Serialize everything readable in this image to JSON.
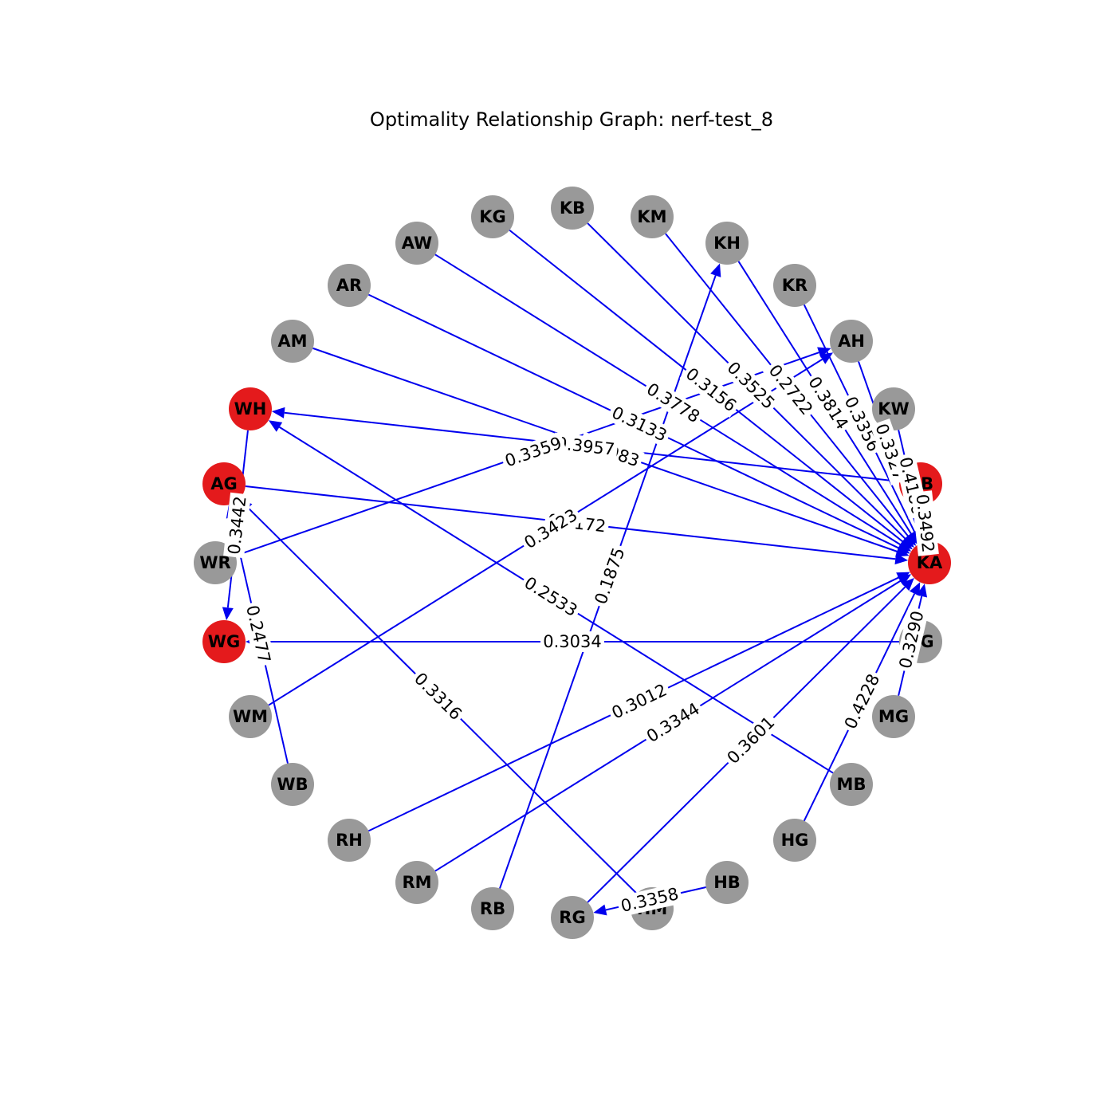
{
  "title": "Optimality Relationship Graph: nerf-test_8",
  "colors": {
    "node_default": "#999999",
    "node_highlight": "#e41a1c",
    "edge": "#0000ee"
  },
  "nodes": [
    {
      "id": "KG",
      "highlight": false
    },
    {
      "id": "KB",
      "highlight": false
    },
    {
      "id": "KM",
      "highlight": false
    },
    {
      "id": "AW",
      "highlight": false
    },
    {
      "id": "KH",
      "highlight": false
    },
    {
      "id": "AR",
      "highlight": false
    },
    {
      "id": "KR",
      "highlight": false
    },
    {
      "id": "AM",
      "highlight": false
    },
    {
      "id": "AH",
      "highlight": false
    },
    {
      "id": "WH",
      "highlight": true
    },
    {
      "id": "KW",
      "highlight": false
    },
    {
      "id": "AG",
      "highlight": true
    },
    {
      "id": "AB",
      "highlight": true
    },
    {
      "id": "WR",
      "highlight": false
    },
    {
      "id": "KA",
      "highlight": true
    },
    {
      "id": "WG",
      "highlight": true
    },
    {
      "id": "BG",
      "highlight": false
    },
    {
      "id": "WM",
      "highlight": false
    },
    {
      "id": "MG",
      "highlight": false
    },
    {
      "id": "WB",
      "highlight": false
    },
    {
      "id": "MB",
      "highlight": false
    },
    {
      "id": "RH",
      "highlight": false
    },
    {
      "id": "HG",
      "highlight": false
    },
    {
      "id": "RM",
      "highlight": false
    },
    {
      "id": "HB",
      "highlight": false
    },
    {
      "id": "RB",
      "highlight": false
    },
    {
      "id": "HM",
      "highlight": false
    },
    {
      "id": "RG",
      "highlight": false
    }
  ],
  "edges": [
    {
      "from": "AW",
      "to": "KA",
      "label": "0.3778"
    },
    {
      "from": "KG",
      "to": "KA",
      "label": "0.3156"
    },
    {
      "from": "KB",
      "to": "KA",
      "label": "0.3525"
    },
    {
      "from": "KM",
      "to": "KA",
      "label": "0.2722"
    },
    {
      "from": "KH",
      "to": "KA",
      "label": "0.3814"
    },
    {
      "from": "KR",
      "to": "KA",
      "label": "0.3356"
    },
    {
      "from": "AR",
      "to": "KA",
      "label": "0.3133"
    },
    {
      "from": "AM",
      "to": "KA",
      "label": "0.3083"
    },
    {
      "from": "AB",
      "to": "WH",
      "label": "0.3957"
    },
    {
      "from": "AG",
      "to": "KA",
      "label": "0.3172"
    },
    {
      "from": "WR",
      "to": "AH",
      "label": "0.3359"
    },
    {
      "from": "WM",
      "to": "AH",
      "label": "0.3423"
    },
    {
      "from": "RB",
      "to": "KH",
      "label": "0.1875"
    },
    {
      "from": "MB",
      "to": "WH",
      "label": "0.2533"
    },
    {
      "from": "BG",
      "to": "WG",
      "label": "0.3034"
    },
    {
      "from": "RH",
      "to": "KA",
      "label": "0.3012"
    },
    {
      "from": "RM",
      "to": "KA",
      "label": "0.3344"
    },
    {
      "from": "RG",
      "to": "KA",
      "label": "0.3601"
    },
    {
      "from": "HG",
      "to": "KA",
      "label": "0.4228"
    },
    {
      "from": "HM",
      "to": "AG",
      "label": "0.3316"
    },
    {
      "from": "WB",
      "to": "AG",
      "label": "0.2477"
    },
    {
      "from": "WH",
      "to": "WG",
      "label": "0.3442"
    },
    {
      "from": "HB",
      "to": "RG",
      "label": "0.3358"
    },
    {
      "from": "AH",
      "to": "KA",
      "label": "0.3327"
    },
    {
      "from": "KW",
      "to": "KA",
      "label": "0.4186"
    },
    {
      "from": "AB",
      "to": "KA",
      "label": "0.3492"
    },
    {
      "from": "MG",
      "to": "KA",
      "label": "0.3290"
    }
  ]
}
